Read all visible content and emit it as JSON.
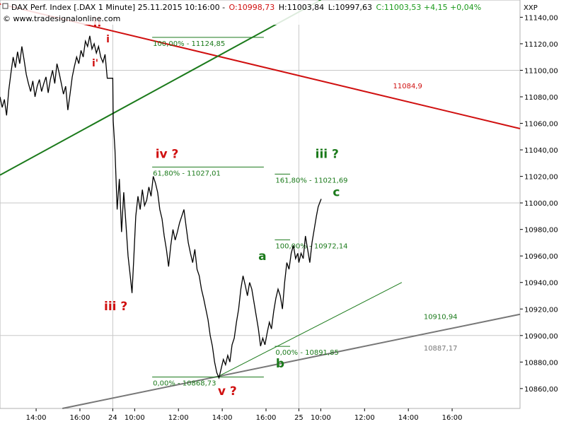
{
  "header": {
    "symbol_text": "DAX Perf. Index [.DAX  1 Minute] 25.11.2015 10:16:00 -",
    "open_text": "O:10998,73",
    "high_text": "H:11003,84",
    "low_text": "L:10997,63",
    "close_text": "C:11003,53 +4,15 +0,04%",
    "watermark": "© www.tradesignalonline.com",
    "axis_code": "XXP"
  },
  "colors": {
    "red": "#d01010",
    "green": "#1b7a1b",
    "gray": "#777777",
    "grid": "#c8c8c8",
    "price": "#000000"
  },
  "chart_data": {
    "type": "line",
    "title": "DAX Perf. Index [.DAX  1 Minute]",
    "ylim": [
      10845,
      11153
    ],
    "y_ticks": [
      11140,
      11120,
      11100,
      11080,
      11060,
      11040,
      11020,
      11000,
      10980,
      10960,
      10940,
      10920,
      10900,
      10880,
      10860
    ],
    "y_tick_labels": [
      "11140,00",
      "11120,00",
      "11100,00",
      "11080,00",
      "11060,00",
      "11040,00",
      "11020,00",
      "11000,00",
      "10980,00",
      "10960,00",
      "10940,00",
      "10920,00",
      "10900,00",
      "10880,00",
      "10860,00"
    ],
    "x_ticks": [
      {
        "t": 13.0,
        "label": "14:00"
      },
      {
        "t": 15.0,
        "label": "16:00"
      },
      {
        "t": 16.5,
        "label": "24"
      },
      {
        "t": 17.5,
        "label": "10:00"
      },
      {
        "t": 19.5,
        "label": "12:00"
      },
      {
        "t": 21.5,
        "label": "14:00"
      },
      {
        "t": 23.5,
        "label": "16:00"
      },
      {
        "t": 25.0,
        "label": "25"
      },
      {
        "t": 26.0,
        "label": "10:00"
      },
      {
        "t": 28.0,
        "label": "12:00"
      },
      {
        "t": 30.0,
        "label": "14:00"
      },
      {
        "t": 32.0,
        "label": "16:00"
      }
    ],
    "xlim": [
      11.35,
      35.1
    ],
    "day_separators": [
      16.5,
      25.0
    ],
    "price_points": [
      [
        11.35,
        11080
      ],
      [
        11.45,
        11072
      ],
      [
        11.55,
        11078
      ],
      [
        11.65,
        11066
      ],
      [
        11.75,
        11085
      ],
      [
        11.85,
        11098
      ],
      [
        11.95,
        11110
      ],
      [
        12.05,
        11102
      ],
      [
        12.15,
        11114
      ],
      [
        12.25,
        11105
      ],
      [
        12.35,
        11118
      ],
      [
        12.45,
        11108
      ],
      [
        12.55,
        11097
      ],
      [
        12.65,
        11090
      ],
      [
        12.75,
        11084
      ],
      [
        12.85,
        11092
      ],
      [
        12.95,
        11080
      ],
      [
        13.05,
        11088
      ],
      [
        13.15,
        11093
      ],
      [
        13.25,
        11084
      ],
      [
        13.35,
        11090
      ],
      [
        13.45,
        11095
      ],
      [
        13.55,
        11083
      ],
      [
        13.65,
        11093
      ],
      [
        13.75,
        11100
      ],
      [
        13.85,
        11090
      ],
      [
        13.95,
        11105
      ],
      [
        14.05,
        11098
      ],
      [
        14.15,
        11090
      ],
      [
        14.25,
        11082
      ],
      [
        14.35,
        11088
      ],
      [
        14.45,
        11070
      ],
      [
        14.55,
        11082
      ],
      [
        14.65,
        11095
      ],
      [
        14.75,
        11103
      ],
      [
        14.85,
        11110
      ],
      [
        14.95,
        11105
      ],
      [
        15.05,
        11115
      ],
      [
        15.15,
        11110
      ],
      [
        15.25,
        11122
      ],
      [
        15.35,
        11118
      ],
      [
        15.45,
        11126
      ],
      [
        15.55,
        11116
      ],
      [
        15.65,
        11120
      ],
      [
        15.75,
        11113
      ],
      [
        15.85,
        11118
      ],
      [
        15.95,
        11110
      ],
      [
        16.05,
        11106
      ],
      [
        16.15,
        11112
      ],
      [
        16.25,
        11094
      ],
      [
        16.5,
        11094
      ],
      [
        16.52,
        11062
      ],
      [
        16.6,
        11040
      ],
      [
        16.7,
        10995
      ],
      [
        16.8,
        11018
      ],
      [
        16.9,
        10978
      ],
      [
        17.0,
        11008
      ],
      [
        17.1,
        10985
      ],
      [
        17.2,
        10960
      ],
      [
        17.3,
        10945
      ],
      [
        17.38,
        10932
      ],
      [
        17.45,
        10955
      ],
      [
        17.55,
        10990
      ],
      [
        17.65,
        11005
      ],
      [
        17.75,
        10995
      ],
      [
        17.85,
        11010
      ],
      [
        17.95,
        10998
      ],
      [
        18.05,
        11002
      ],
      [
        18.15,
        11012
      ],
      [
        18.25,
        11005
      ],
      [
        18.35,
        11020
      ],
      [
        18.45,
        11015
      ],
      [
        18.55,
        11008
      ],
      [
        18.65,
        10995
      ],
      [
        18.75,
        10988
      ],
      [
        18.85,
        10975
      ],
      [
        18.95,
        10965
      ],
      [
        19.05,
        10952
      ],
      [
        19.15,
        10968
      ],
      [
        19.25,
        10980
      ],
      [
        19.35,
        10972
      ],
      [
        19.45,
        10978
      ],
      [
        19.55,
        10985
      ],
      [
        19.65,
        10990
      ],
      [
        19.75,
        10995
      ],
      [
        19.85,
        10982
      ],
      [
        19.95,
        10970
      ],
      [
        20.05,
        10962
      ],
      [
        20.15,
        10955
      ],
      [
        20.25,
        10965
      ],
      [
        20.35,
        10950
      ],
      [
        20.45,
        10945
      ],
      [
        20.55,
        10935
      ],
      [
        20.65,
        10928
      ],
      [
        20.75,
        10920
      ],
      [
        20.85,
        10912
      ],
      [
        20.95,
        10900
      ],
      [
        21.05,
        10892
      ],
      [
        21.15,
        10880
      ],
      [
        21.25,
        10872
      ],
      [
        21.35,
        10868
      ],
      [
        21.45,
        10875
      ],
      [
        21.55,
        10882
      ],
      [
        21.65,
        10878
      ],
      [
        21.75,
        10885
      ],
      [
        21.85,
        10880
      ],
      [
        21.95,
        10893
      ],
      [
        22.05,
        10898
      ],
      [
        22.15,
        10910
      ],
      [
        22.25,
        10920
      ],
      [
        22.35,
        10935
      ],
      [
        22.45,
        10945
      ],
      [
        22.55,
        10938
      ],
      [
        22.65,
        10930
      ],
      [
        22.75,
        10940
      ],
      [
        22.85,
        10935
      ],
      [
        22.95,
        10925
      ],
      [
        23.05,
        10915
      ],
      [
        23.15,
        10905
      ],
      [
        23.25,
        10892
      ],
      [
        23.35,
        10898
      ],
      [
        23.45,
        10893
      ],
      [
        23.55,
        10902
      ],
      [
        23.65,
        10910
      ],
      [
        23.75,
        10905
      ],
      [
        23.85,
        10918
      ],
      [
        23.95,
        10928
      ],
      [
        24.05,
        10935
      ],
      [
        24.15,
        10930
      ],
      [
        24.25,
        10920
      ],
      [
        24.35,
        10940
      ],
      [
        24.45,
        10955
      ],
      [
        24.55,
        10950
      ],
      [
        24.65,
        10962
      ],
      [
        24.75,
        10968
      ],
      [
        24.85,
        10958
      ],
      [
        24.95,
        10962
      ],
      [
        25.0,
        10955
      ],
      [
        25.1,
        10962
      ],
      [
        25.2,
        10958
      ],
      [
        25.3,
        10975
      ],
      [
        25.4,
        10965
      ],
      [
        25.5,
        10955
      ],
      [
        25.6,
        10970
      ],
      [
        25.7,
        10980
      ],
      [
        25.8,
        10990
      ],
      [
        25.88,
        10997
      ],
      [
        25.95,
        11000
      ],
      [
        26.02,
        11003
      ]
    ],
    "trendlines": [
      {
        "name": "red",
        "color": "#d01010",
        "from": [
          11.35,
          11150
        ],
        "to": [
          35.1,
          11056
        ]
      },
      {
        "name": "green",
        "color": "#1b7a1b",
        "from": [
          11.35,
          11021
        ],
        "to": [
          26.0,
          11153
        ]
      },
      {
        "name": "gray",
        "color": "#777777",
        "from": [
          14.2,
          10845
        ],
        "to": [
          35.1,
          10916
        ]
      },
      {
        "name": "green-thin",
        "color": "#1b7a1b",
        "from": [
          21.3,
          10869
        ],
        "to": [
          29.7,
          10940
        ]
      }
    ],
    "fib_levels": [
      {
        "label": "100,00% - 11124,85",
        "value": 11124.85,
        "t_start": 18.3,
        "t_end": 23.4
      },
      {
        "label": "61,80% - 11027,01",
        "value": 11027.01,
        "t_start": 18.3,
        "t_end": 23.4
      },
      {
        "label": "0,00% - 10868,73",
        "value": 10868.73,
        "t_start": 18.3,
        "t_end": 23.4
      },
      {
        "label": "161,80% - 11021,69",
        "value": 11021.69,
        "t_start": 23.9,
        "t_end": 24.6
      },
      {
        "label": "100,00% - 10972,14",
        "value": 10972.14,
        "t_start": 23.9,
        "t_end": 24.6
      },
      {
        "label": "0,00% - 10891,85",
        "value": 10891.85,
        "t_start": 23.9,
        "t_end": 24.6
      }
    ],
    "value_labels": [
      {
        "text": "11084,9",
        "t": 29.3,
        "value": 11084.9,
        "color": "#d01010"
      },
      {
        "text": "10910,94",
        "t": 30.7,
        "value": 10910.94,
        "color": "#1b7a1b"
      },
      {
        "text": "10887,17",
        "t": 30.7,
        "value": 10887.17,
        "color": "#777777"
      }
    ],
    "wave_labels": [
      {
        "text": "ii",
        "t": 15.6,
        "value": 11133,
        "style": "red"
      },
      {
        "text": "i",
        "t": 16.2,
        "value": 11121,
        "style": "sm-red"
      },
      {
        "text": "i'",
        "t": 15.55,
        "value": 11103,
        "style": "sm-red"
      },
      {
        "text": "iv ?",
        "t": 18.45,
        "value": 11034,
        "style": "red"
      },
      {
        "text": "iii ?",
        "t": 16.1,
        "value": 10919,
        "style": "red"
      },
      {
        "text": "v ?",
        "t": 21.3,
        "value": 10855,
        "style": "red"
      },
      {
        "text": "a",
        "t": 23.15,
        "value": 10957,
        "style": "grn"
      },
      {
        "text": "b",
        "t": 23.95,
        "value": 10876,
        "style": "grn"
      },
      {
        "text": "c",
        "t": 26.55,
        "value": 11005,
        "style": "grn"
      },
      {
        "text": "iii ?",
        "t": 25.75,
        "value": 11034,
        "style": "grn"
      }
    ]
  }
}
